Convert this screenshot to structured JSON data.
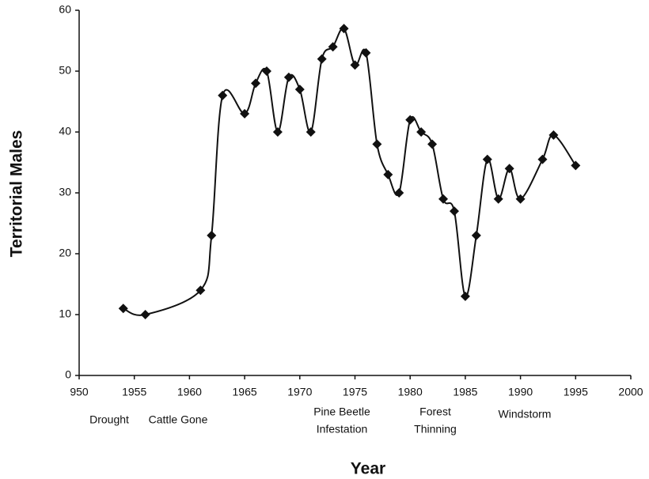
{
  "chart_data": {
    "type": "line",
    "x_label": "Year",
    "y_label": "Territorial Males",
    "x": [
      1954,
      1956,
      1961,
      1962,
      1963,
      1965,
      1966,
      1967,
      1968,
      1969,
      1970,
      1971,
      1972,
      1973,
      1974,
      1975,
      1976,
      1977,
      1978,
      1979,
      1980,
      1981,
      1982,
      1983,
      1984,
      1985,
      1986,
      1987,
      1988,
      1989,
      1990,
      1992,
      1993,
      1995
    ],
    "series": [
      {
        "color": "#111111",
        "values": [
          11,
          10,
          14,
          23,
          46,
          43,
          48,
          50,
          40,
          49,
          47,
          40,
          52,
          54,
          57,
          51,
          53,
          38,
          33,
          30,
          42,
          40,
          38,
          29,
          27,
          13,
          23,
          35.5,
          29,
          34,
          29,
          35.5,
          39.5,
          34.5
        ]
      }
    ],
    "xlim": [
      1950,
      2000
    ],
    "xticks": [
      {
        "value": 1950,
        "label": "950"
      },
      1955,
      1960,
      1965,
      1970,
      1975,
      1980,
      1985,
      1990,
      1995,
      2000
    ],
    "ylim": [
      0,
      60
    ],
    "yticks": [
      0,
      10,
      20,
      30,
      40,
      50,
      60
    ],
    "annotations": [
      [
        "Drought"
      ],
      [
        "Cattle Gone"
      ],
      [
        "Pine Beetle",
        "Infestation"
      ],
      [
        "Forest",
        "Thinning"
      ],
      [
        "Windstorm"
      ]
    ]
  }
}
